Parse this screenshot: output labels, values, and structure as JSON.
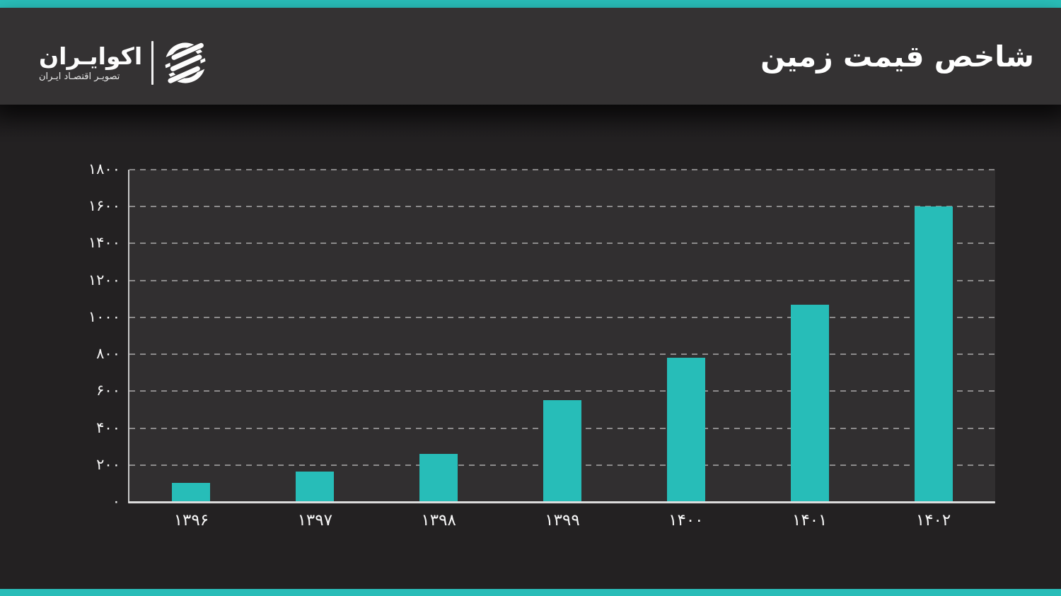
{
  "page": {
    "title": "شاخص قیمت زمین",
    "accent_color": "#29BDB8",
    "header_bg": "#343233",
    "body_bg": "#232122",
    "plot_bg": "#312F30",
    "bar_color": "#27BDB8"
  },
  "logo": {
    "name": "اکوایـران",
    "tagline": "تصویـر اقتصـاد ایـران",
    "icon": "ecoiran-striped-circle-logo"
  },
  "chart_data": {
    "type": "bar",
    "title": "شاخص قیمت زمین",
    "categories": [
      "۱۳۹۶",
      "۱۳۹۷",
      "۱۳۹۸",
      "۱۳۹۹",
      "۱۴۰۰",
      "۱۴۰۱",
      "۱۴۰۲"
    ],
    "values": [
      105,
      165,
      260,
      550,
      780,
      1070,
      1600
    ],
    "y_ticks": [
      "۰",
      "۲۰۰",
      "۴۰۰",
      "۶۰۰",
      "۸۰۰",
      "۱۰۰۰",
      "۱۲۰۰",
      "۱۴۰۰",
      "۱۶۰۰",
      "۱۸۰۰"
    ],
    "y_tick_values": [
      0,
      200,
      400,
      600,
      800,
      1000,
      1200,
      1400,
      1600,
      1800
    ],
    "ylim": [
      0,
      1800
    ],
    "xlabel": "",
    "ylabel": "",
    "grid": "dashed-horizontal",
    "legend": "none",
    "bar_color": "#27BDB8"
  }
}
